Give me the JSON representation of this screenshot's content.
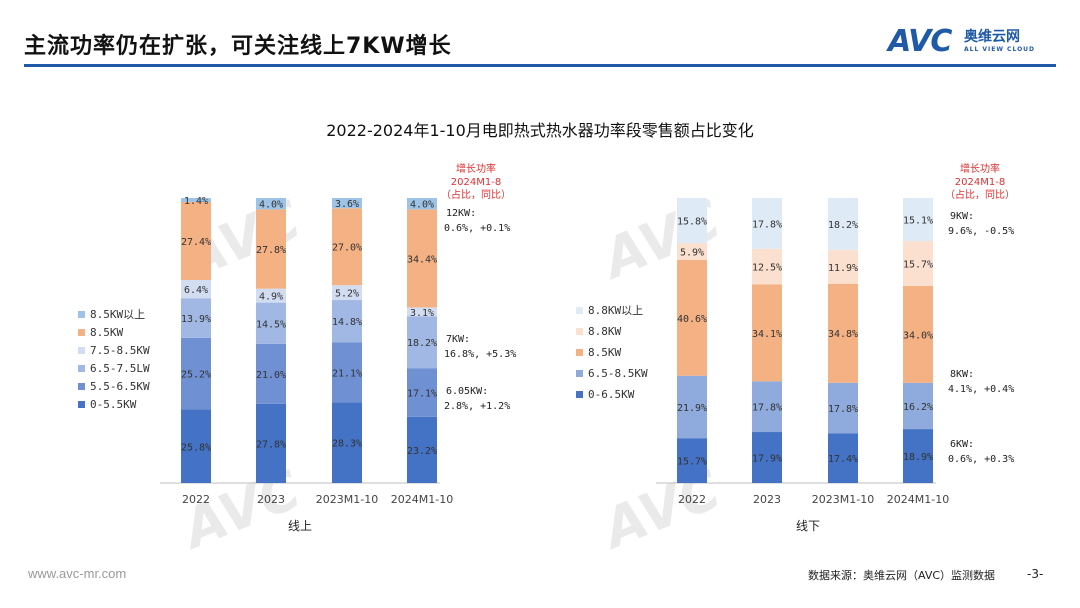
{
  "header": {
    "title": "主流功率仍在扩张，可关注线上7KW增长",
    "logo_text": "AVC",
    "logo_cn": "奥维云网",
    "logo_en": "ALL VIEW CLOUD"
  },
  "chart_title": "2022-2024年1-10月电即热式热水器功率段零售额占比变化",
  "footer": {
    "url": "www.avc-mr.com",
    "source": "数据来源：奥维云网（AVC）监测数据",
    "page": "-3-"
  },
  "colors": {
    "brand": "#1f5aa8",
    "annotation_red": "#e03030"
  },
  "chart_data": [
    {
      "type": "bar",
      "stacked": true,
      "group_label": "线上",
      "categories": [
        "2022",
        "2023",
        "2023M1-10",
        "2024M1-10"
      ],
      "series": [
        {
          "name": "0-5.5KW",
          "color": "#4472c4",
          "values": [
            25.8,
            27.8,
            28.3,
            23.2
          ],
          "labels": [
            "25.8%",
            "27.8%",
            "28.3%",
            "23.2%"
          ]
        },
        {
          "name": "5.5-6.5KW",
          "color": "#6f91d4",
          "values": [
            25.2,
            21.0,
            21.1,
            17.1
          ],
          "labels": [
            "25.2%",
            "21.0%",
            "21.1%",
            "17.1%"
          ]
        },
        {
          "name": "6.5-7.5LW",
          "color": "#a2b8e4",
          "values": [
            13.9,
            14.5,
            14.8,
            18.2
          ],
          "labels": [
            "13.9%",
            "14.5%",
            "14.8%",
            "18.2%"
          ]
        },
        {
          "name": "7.5-8.5KW",
          "color": "#d2ddf2",
          "values": [
            6.4,
            4.9,
            5.2,
            3.1
          ],
          "labels": [
            "6.4%",
            "4.9%",
            "5.2%",
            "3.1%"
          ]
        },
        {
          "name": "8.5KW",
          "color": "#f4b183",
          "values": [
            27.4,
            27.8,
            27.0,
            34.4
          ],
          "labels": [
            "27.4%",
            "27.8%",
            "27.0%",
            "34.4%"
          ]
        },
        {
          "name": "8.5KW以上",
          "color": "#9dc3e6",
          "values": [
            1.4,
            4.0,
            3.6,
            4.0
          ],
          "labels": [
            "1.4%",
            "4.0%",
            "3.6%",
            "4.0%"
          ]
        }
      ],
      "ylim": [
        0,
        100
      ],
      "annotation_header": [
        "增长功率",
        "2024M1-8",
        "（占比，同比）"
      ],
      "annotations": [
        {
          "name": "12KW:",
          "value": "0.6%, +0.1%"
        },
        {
          "name": "7KW:",
          "value": "16.8%, +5.3%"
        },
        {
          "name": "6.05KW:",
          "value": "2.8%, +1.2%"
        }
      ]
    },
    {
      "type": "bar",
      "stacked": true,
      "group_label": "线下",
      "categories": [
        "2022",
        "2023",
        "2023M1-10",
        "2024M1-10"
      ],
      "series": [
        {
          "name": "0-6.5KW",
          "color": "#4472c4",
          "values": [
            15.7,
            17.9,
            17.4,
            18.9
          ],
          "labels": [
            "15.7%",
            "17.9%",
            "17.4%",
            "18.9%"
          ]
        },
        {
          "name": "6.5-8.5KW",
          "color": "#8faadc",
          "values": [
            21.9,
            17.8,
            17.8,
            16.2
          ],
          "labels": [
            "21.9%",
            "17.8%",
            "17.8%",
            "16.2%"
          ]
        },
        {
          "name": "8.5KW",
          "color": "#f4b183",
          "values": [
            40.6,
            34.1,
            34.8,
            34.0
          ],
          "labels": [
            "40.6%",
            "34.1%",
            "34.8%",
            "34.0%"
          ]
        },
        {
          "name": "8.8KW",
          "color": "#fbe0cf",
          "values": [
            5.9,
            12.5,
            11.9,
            15.7
          ],
          "labels": [
            "5.9%",
            "12.5%",
            "11.9%",
            "15.7%"
          ]
        },
        {
          "name": "8.8KW以上",
          "color": "#deebf7",
          "values": [
            15.8,
            17.8,
            18.2,
            15.1
          ],
          "labels": [
            "15.8%",
            "17.8%",
            "18.2%",
            "15.1%"
          ]
        }
      ],
      "ylim": [
        0,
        100
      ],
      "annotation_header": [
        "增长功率",
        "2024M1-8",
        "（占比，同比）"
      ],
      "annotations": [
        {
          "name": "9KW:",
          "value": "9.6%, -0.5%"
        },
        {
          "name": "8KW:",
          "value": "4.1%, +0.4%"
        },
        {
          "name": "6KW:",
          "value": "0.6%, +0.3%"
        }
      ]
    }
  ]
}
